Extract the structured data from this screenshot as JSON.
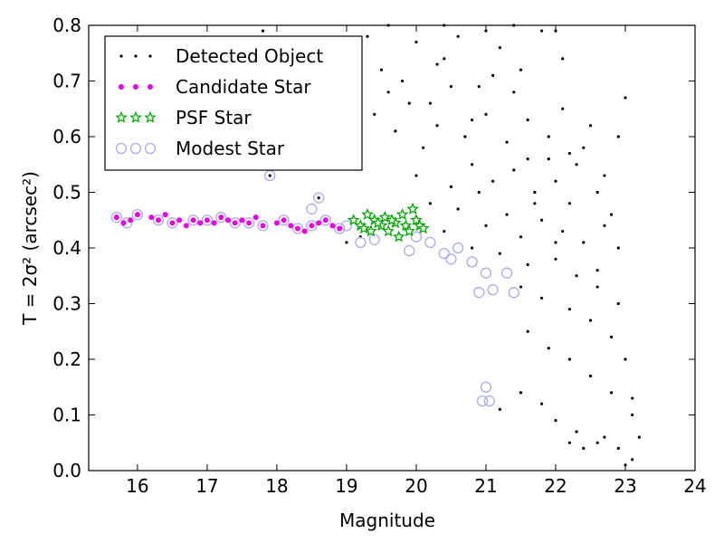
{
  "chart_data": {
    "type": "scatter",
    "xlabel": "Magnitude",
    "ylabel": "T = 2σ² (arcsec²)",
    "xlim": [
      15.3,
      24
    ],
    "ylim": [
      0.0,
      0.8
    ],
    "xticks": [
      "16",
      "17",
      "18",
      "19",
      "20",
      "21",
      "22",
      "23",
      "24"
    ],
    "yticks": [
      "0.0",
      "0.1",
      "0.2",
      "0.3",
      "0.4",
      "0.5",
      "0.6",
      "0.7",
      "0.8"
    ],
    "legend_position": "top-left",
    "grid": false,
    "series": [
      {
        "name": "Detected Object",
        "marker": "dot",
        "color": "#000000",
        "points": [
          [
            17.8,
            0.79
          ],
          [
            19.1,
            0.75
          ],
          [
            19.3,
            0.78
          ],
          [
            19.5,
            0.72
          ],
          [
            19.8,
            0.7
          ],
          [
            20.0,
            0.77
          ],
          [
            20.2,
            0.66
          ],
          [
            20.4,
            0.74
          ],
          [
            20.6,
            0.78
          ],
          [
            20.9,
            0.69
          ],
          [
            21.2,
            0.76
          ],
          [
            21.5,
            0.72
          ],
          [
            21.8,
            0.79
          ],
          [
            22.1,
            0.74
          ],
          [
            19.4,
            0.64
          ],
          [
            19.7,
            0.61
          ],
          [
            20.1,
            0.58
          ],
          [
            20.3,
            0.62
          ],
          [
            20.7,
            0.6
          ],
          [
            21.0,
            0.64
          ],
          [
            21.3,
            0.59
          ],
          [
            21.6,
            0.63
          ],
          [
            21.9,
            0.6
          ],
          [
            22.2,
            0.57
          ],
          [
            22.5,
            0.62
          ],
          [
            22.9,
            0.6
          ],
          [
            23.0,
            0.67
          ],
          [
            20.0,
            0.53
          ],
          [
            20.5,
            0.51
          ],
          [
            20.8,
            0.55
          ],
          [
            21.1,
            0.52
          ],
          [
            21.4,
            0.54
          ],
          [
            21.7,
            0.5
          ],
          [
            22.0,
            0.52
          ],
          [
            22.3,
            0.55
          ],
          [
            22.6,
            0.5
          ],
          [
            22.8,
            0.46
          ],
          [
            20.6,
            0.47
          ],
          [
            21.0,
            0.44
          ],
          [
            21.3,
            0.46
          ],
          [
            21.5,
            0.42
          ],
          [
            21.8,
            0.45
          ],
          [
            22.1,
            0.43
          ],
          [
            22.4,
            0.41
          ],
          [
            22.7,
            0.44
          ],
          [
            20.4,
            0.43
          ],
          [
            20.8,
            0.4
          ],
          [
            21.2,
            0.39
          ],
          [
            21.6,
            0.37
          ],
          [
            22.0,
            0.38
          ],
          [
            22.3,
            0.35
          ],
          [
            22.6,
            0.33
          ],
          [
            22.9,
            0.3
          ],
          [
            21.5,
            0.33
          ],
          [
            21.8,
            0.31
          ],
          [
            22.2,
            0.29
          ],
          [
            22.5,
            0.27
          ],
          [
            22.8,
            0.24
          ],
          [
            23.0,
            0.2
          ],
          [
            21.6,
            0.25
          ],
          [
            21.9,
            0.22
          ],
          [
            22.2,
            0.2
          ],
          [
            22.5,
            0.17
          ],
          [
            22.8,
            0.14
          ],
          [
            23.1,
            0.1
          ],
          [
            21.5,
            0.14
          ],
          [
            21.8,
            0.12
          ],
          [
            22.0,
            0.09
          ],
          [
            22.3,
            0.07
          ],
          [
            22.6,
            0.05
          ],
          [
            22.9,
            0.04
          ],
          [
            23.1,
            0.02
          ],
          [
            21.2,
            0.11
          ],
          [
            22.4,
            0.04
          ],
          [
            23.0,
            0.01
          ],
          [
            22.2,
            0.05
          ],
          [
            22.7,
            0.06
          ],
          [
            23.2,
            0.06
          ],
          [
            23.1,
            0.13
          ],
          [
            22.0,
            0.41
          ],
          [
            21.7,
            0.48
          ],
          [
            21.9,
            0.56
          ],
          [
            21.4,
            0.68
          ],
          [
            21.1,
            0.71
          ],
          [
            20.8,
            0.63
          ],
          [
            20.5,
            0.69
          ],
          [
            20.3,
            0.73
          ],
          [
            19.9,
            0.66
          ],
          [
            19.6,
            0.68
          ],
          [
            22.4,
            0.58
          ],
          [
            22.1,
            0.65
          ],
          [
            22.7,
            0.53
          ],
          [
            22.9,
            0.4
          ],
          [
            22.6,
            0.36
          ],
          [
            19.0,
            0.41
          ],
          [
            17.9,
            0.53
          ],
          [
            18.6,
            0.49
          ],
          [
            19.2,
            0.42
          ],
          [
            20.2,
            0.48
          ],
          [
            20.9,
            0.5
          ],
          [
            21.6,
            0.56
          ],
          [
            22.2,
            0.48
          ],
          [
            19.6,
            0.8
          ],
          [
            20.4,
            0.8
          ],
          [
            21.0,
            0.79
          ],
          [
            21.4,
            0.8
          ],
          [
            22.0,
            0.79
          ]
        ]
      },
      {
        "name": "Candidate Star",
        "marker": "circle",
        "color": "#ee00ee",
        "points": [
          [
            15.7,
            0.455
          ],
          [
            15.8,
            0.445
          ],
          [
            15.9,
            0.45
          ],
          [
            16.0,
            0.46
          ],
          [
            16.2,
            0.455
          ],
          [
            16.3,
            0.45
          ],
          [
            16.4,
            0.46
          ],
          [
            16.5,
            0.445
          ],
          [
            16.6,
            0.45
          ],
          [
            16.7,
            0.44
          ],
          [
            16.8,
            0.45
          ],
          [
            16.9,
            0.445
          ],
          [
            17.0,
            0.45
          ],
          [
            17.1,
            0.445
          ],
          [
            17.2,
            0.455
          ],
          [
            17.3,
            0.45
          ],
          [
            17.4,
            0.445
          ],
          [
            17.5,
            0.45
          ],
          [
            17.6,
            0.445
          ],
          [
            17.7,
            0.455
          ],
          [
            17.8,
            0.44
          ],
          [
            18.0,
            0.445
          ],
          [
            18.1,
            0.45
          ],
          [
            18.2,
            0.44
          ],
          [
            18.3,
            0.435
          ],
          [
            18.4,
            0.43
          ],
          [
            18.5,
            0.44
          ],
          [
            18.6,
            0.445
          ],
          [
            18.7,
            0.45
          ],
          [
            18.8,
            0.44
          ],
          [
            18.9,
            0.435
          ]
        ]
      },
      {
        "name": "PSF Star",
        "marker": "star",
        "color": "#00aa00",
        "points": [
          [
            19.1,
            0.45
          ],
          [
            19.2,
            0.44
          ],
          [
            19.3,
            0.46
          ],
          [
            19.35,
            0.43
          ],
          [
            19.4,
            0.45
          ],
          [
            19.5,
            0.44
          ],
          [
            19.55,
            0.455
          ],
          [
            19.6,
            0.43
          ],
          [
            19.7,
            0.445
          ],
          [
            19.75,
            0.42
          ],
          [
            19.8,
            0.46
          ],
          [
            19.85,
            0.44
          ],
          [
            19.9,
            0.43
          ],
          [
            20.0,
            0.45
          ],
          [
            20.05,
            0.44
          ],
          [
            20.1,
            0.435
          ],
          [
            19.65,
            0.45
          ],
          [
            19.25,
            0.435
          ],
          [
            19.45,
            0.445
          ],
          [
            19.95,
            0.47
          ]
        ]
      },
      {
        "name": "Modest Star",
        "marker": "ring",
        "color": "#aaaaee",
        "points": [
          [
            15.7,
            0.455
          ],
          [
            15.85,
            0.445
          ],
          [
            16.0,
            0.46
          ],
          [
            16.3,
            0.45
          ],
          [
            16.5,
            0.445
          ],
          [
            16.8,
            0.45
          ],
          [
            17.0,
            0.45
          ],
          [
            17.2,
            0.455
          ],
          [
            17.4,
            0.445
          ],
          [
            17.6,
            0.445
          ],
          [
            17.8,
            0.44
          ],
          [
            18.1,
            0.45
          ],
          [
            18.3,
            0.435
          ],
          [
            18.5,
            0.44
          ],
          [
            18.7,
            0.45
          ],
          [
            18.9,
            0.435
          ],
          [
            17.9,
            0.53
          ],
          [
            18.6,
            0.49
          ],
          [
            18.5,
            0.47
          ],
          [
            19.0,
            0.44
          ],
          [
            19.2,
            0.41
          ],
          [
            19.4,
            0.415
          ],
          [
            20.2,
            0.41
          ],
          [
            20.4,
            0.39
          ],
          [
            20.5,
            0.38
          ],
          [
            20.6,
            0.4
          ],
          [
            20.8,
            0.375
          ],
          [
            20.9,
            0.32
          ],
          [
            21.0,
            0.355
          ],
          [
            21.1,
            0.325
          ],
          [
            21.3,
            0.355
          ],
          [
            21.4,
            0.32
          ],
          [
            20.95,
            0.125
          ],
          [
            21.0,
            0.15
          ],
          [
            21.05,
            0.125
          ],
          [
            19.9,
            0.395
          ],
          [
            20.0,
            0.42
          ]
        ]
      }
    ]
  }
}
